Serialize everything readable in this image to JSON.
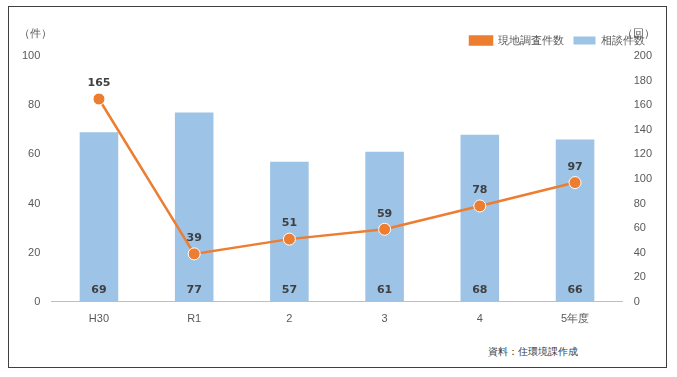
{
  "chart_data": {
    "type": "bar",
    "categories": [
      "H30",
      "R1",
      "2",
      "3",
      "4",
      "5年度"
    ],
    "series": [
      {
        "name": "相談件数",
        "type": "bar",
        "color": "#9dc3e6",
        "values": [
          69,
          77,
          57,
          61,
          68,
          66
        ]
      },
      {
        "name": "現地調査件数",
        "type": "line",
        "color": "#ed7d31",
        "marker": "circle",
        "axis": "y2",
        "values": [
          165,
          39,
          51,
          59,
          78,
          97
        ]
      }
    ],
    "ylabel": "（件）",
    "y2label": "（回）",
    "ylim": [
      0,
      100
    ],
    "yticks": [
      0,
      20,
      40,
      60,
      80,
      100
    ],
    "y2lim": [
      0,
      200
    ],
    "y2ticks": [
      0,
      20,
      40,
      60,
      80,
      100,
      120,
      140,
      160,
      180,
      200
    ],
    "grid": false,
    "legend": "top-right",
    "data_labels": true,
    "note": "資料：住環境課作成"
  }
}
